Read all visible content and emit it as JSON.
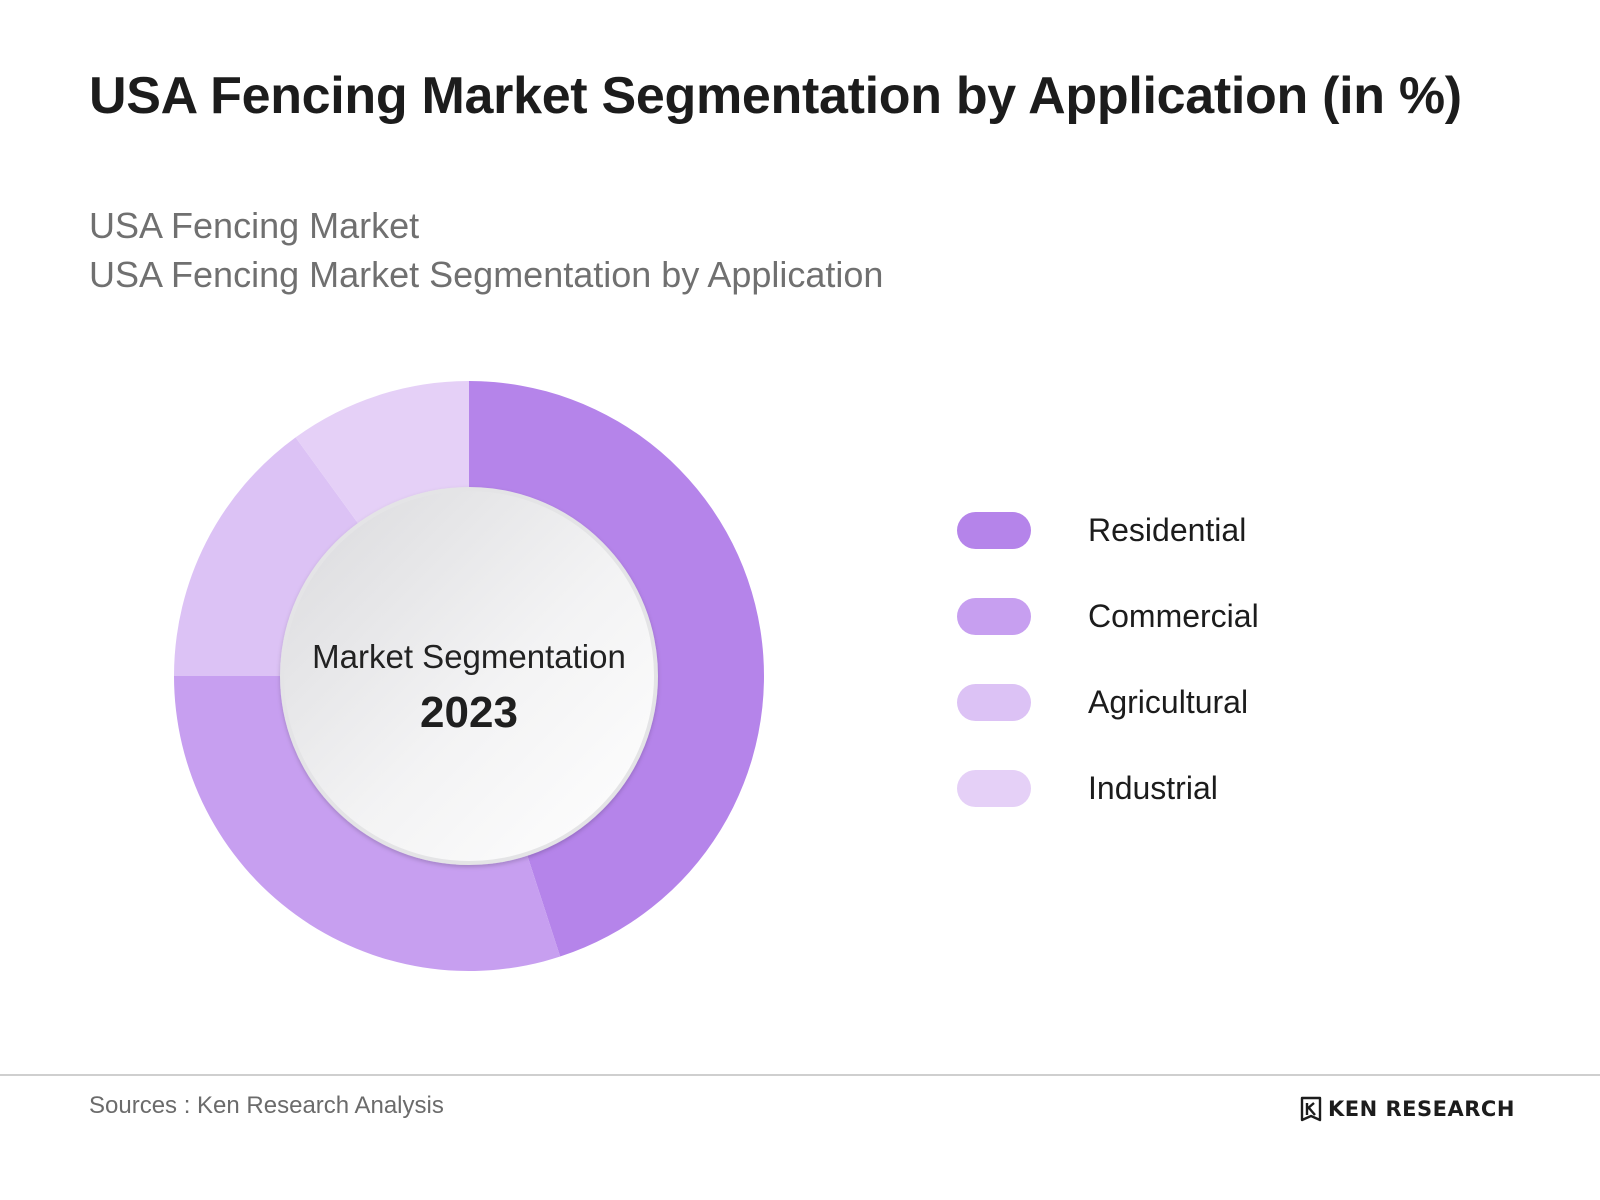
{
  "header": {
    "title": "USA Fencing Market Segmentation by Application (in %)",
    "subtitle_line1": "USA Fencing Market",
    "subtitle_line2": "USA Fencing Market Segmentation by Application"
  },
  "center": {
    "label": "Market Segmentation",
    "year": "2023"
  },
  "chart_data": {
    "type": "pie",
    "donut": true,
    "categories": [
      "Residential",
      "Commercial",
      "Agricultural",
      "Industrial"
    ],
    "values": [
      45,
      30,
      15,
      10
    ],
    "colors": [
      "#b584ea",
      "#c79ff0",
      "#dcc2f5",
      "#e5d0f7"
    ],
    "legend_position": "right"
  },
  "footer": {
    "source": "Sources : Ken Research Analysis",
    "brand": "KEN RESEARCH"
  }
}
